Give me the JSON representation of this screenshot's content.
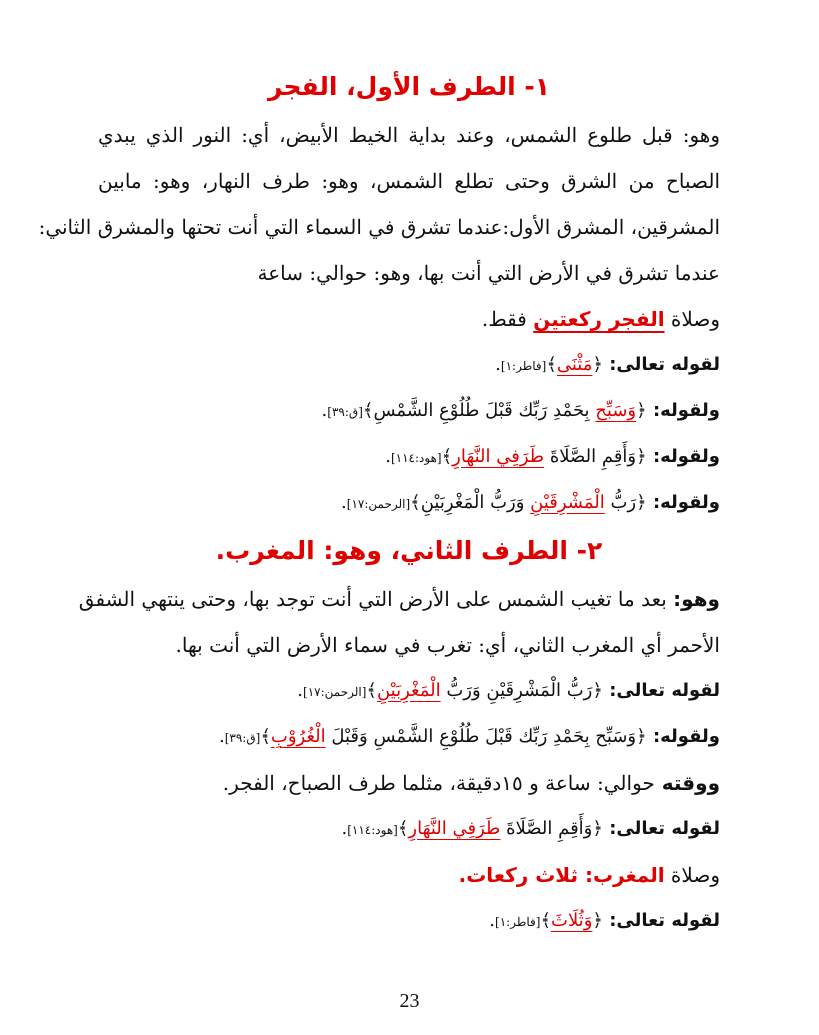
{
  "accent_color": "#e00000",
  "lines": [
    {
      "type": "heading",
      "align": "center",
      "segments": [
        {
          "t": "١- الطرف الأول، الفجر"
        }
      ]
    },
    {
      "type": "body",
      "align": "just",
      "segments": [
        {
          "t": "وهو: قبل طلوع الشمس، وعند بداية الخيط الأبيض، أي: النور الذي يبدي"
        }
      ]
    },
    {
      "type": "body",
      "align": "just",
      "segments": [
        {
          "t": "الصباح من الشرق وحتى تطلع الشمس، وهو: طرف النهار، وهو: مابين"
        }
      ]
    },
    {
      "type": "body",
      "align": "just",
      "segments": [
        {
          "t": "المشرقين، المشرق الأول:عندما تشرق في السماء التي أنت تحتها والمشرق الثاني:"
        }
      ]
    },
    {
      "type": "body",
      "segments": [
        {
          "t": "عندما تشرق في الأرض التي أنت بها، وهو: حوالي: ساعة"
        }
      ]
    },
    {
      "type": "body",
      "segments": [
        {
          "t": "وصلاة "
        },
        {
          "t": "الفجر ركعتين",
          "s": "b red ul"
        },
        {
          "t": " فقط."
        }
      ]
    },
    {
      "type": "verse",
      "segments": [
        {
          "t": "لقوله تعالى: ",
          "s": "b"
        },
        {
          "t": "﴿"
        },
        {
          "t": "مَثْنَى",
          "s": "red ul"
        },
        {
          "t": "﴾"
        },
        {
          "t": "[فاطر:١]",
          "s": "ref"
        },
        {
          "t": "."
        }
      ]
    },
    {
      "type": "verse",
      "segments": [
        {
          "t": "ولقوله: ",
          "s": "b"
        },
        {
          "t": "﴿"
        },
        {
          "t": "وَسَبِّح",
          "s": "red ul"
        },
        {
          "t": " بِحَمْدِ رَبِّك قَبْلَ طُلُوْعِ الشَّمْسِ"
        },
        {
          "t": "﴾"
        },
        {
          "t": "[ق:٣٩]",
          "s": "ref"
        },
        {
          "t": "."
        }
      ]
    },
    {
      "type": "verse",
      "segments": [
        {
          "t": "ولقوله: ",
          "s": "b"
        },
        {
          "t": "﴿"
        },
        {
          "t": "وَأَقِمِ الصَّلَاةَ "
        },
        {
          "t": "طَرَفِي النَّهَارِ",
          "s": "red ul"
        },
        {
          "t": "﴾"
        },
        {
          "t": "[هود:١١٤]",
          "s": "ref"
        },
        {
          "t": "."
        }
      ]
    },
    {
      "type": "verse",
      "segments": [
        {
          "t": "ولقوله: ",
          "s": "b"
        },
        {
          "t": "﴿"
        },
        {
          "t": "رَبُّ "
        },
        {
          "t": "الْمَشْرِقَيْنِ",
          "s": "red ul"
        },
        {
          "t": " وَرَبُّ الْمَغْرِبَيْنِ"
        },
        {
          "t": "﴾"
        },
        {
          "t": "[الرحمن:١٧]",
          "s": "ref"
        },
        {
          "t": "."
        }
      ]
    },
    {
      "type": "heading",
      "align": "center",
      "segments": [
        {
          "t": "٢- الطرف الثاني، وهو: المغرب."
        }
      ]
    },
    {
      "type": "body",
      "align": "just",
      "segments": [
        {
          "t": "وهو:",
          "s": "b"
        },
        {
          "t": " بعد ما تغيب الشمس على الأرض التي أنت توجد بها، وحتى ينتهي الشفق"
        }
      ]
    },
    {
      "type": "body",
      "segments": [
        {
          "t": "الأحمر أي المغرب الثاني، أي: تغرب في سماء الأرض التي أنت بها."
        }
      ]
    },
    {
      "type": "verse",
      "segments": [
        {
          "t": "لقوله تعالى: ",
          "s": "b"
        },
        {
          "t": "﴿"
        },
        {
          "t": "رَبُّ الْمَشْرِقَيْنِ وَرَبُّ "
        },
        {
          "t": "الْمَغْرِبَيْنِ",
          "s": "red ul"
        },
        {
          "t": "﴾"
        },
        {
          "t": "[الرحمن:١٧]",
          "s": "ref"
        },
        {
          "t": "."
        }
      ]
    },
    {
      "type": "verse",
      "segments": [
        {
          "t": "ولقوله: ",
          "s": "b"
        },
        {
          "t": "﴿"
        },
        {
          "t": "وَسَبِّح بِحَمْدِ رَبِّك قَبْلَ طُلُوْعِ الشَّمْسِ وَقَبْلَ "
        },
        {
          "t": "الْغُرُوْبِ",
          "s": "red ul"
        },
        {
          "t": "﴾"
        },
        {
          "t": "[ق:٣٩]",
          "s": "ref"
        },
        {
          "t": "."
        }
      ]
    },
    {
      "type": "body",
      "segments": [
        {
          "t": "ووقته ",
          "s": "b"
        },
        {
          "t": " حوالي: ساعة و ١٥دقيقة، مثلما طرف الصباح، الفجر."
        }
      ]
    },
    {
      "type": "verse",
      "segments": [
        {
          "t": "لقوله تعالى: ",
          "s": "b"
        },
        {
          "t": "﴿"
        },
        {
          "t": "وَأَقِمِ الصَّلَاةَ "
        },
        {
          "t": "طَرَفِي النَّهَارِ",
          "s": "red ul"
        },
        {
          "t": "﴾"
        },
        {
          "t": "[هود:١١٤]",
          "s": "ref"
        },
        {
          "t": "."
        }
      ]
    },
    {
      "type": "body",
      "segments": [
        {
          "t": "وصلاة "
        },
        {
          "t": "المغرب: ثلاث ركعات.",
          "s": "b red"
        }
      ]
    },
    {
      "type": "verse",
      "segments": [
        {
          "t": "لقوله تعالى: ",
          "s": "b"
        },
        {
          "t": "﴿"
        },
        {
          "t": "وَثُلَاثَ",
          "s": "red ul"
        },
        {
          "t": "﴾"
        },
        {
          "t": "[فاطر:١]",
          "s": "ref"
        },
        {
          "t": "."
        }
      ]
    }
  ],
  "page_number": "23"
}
